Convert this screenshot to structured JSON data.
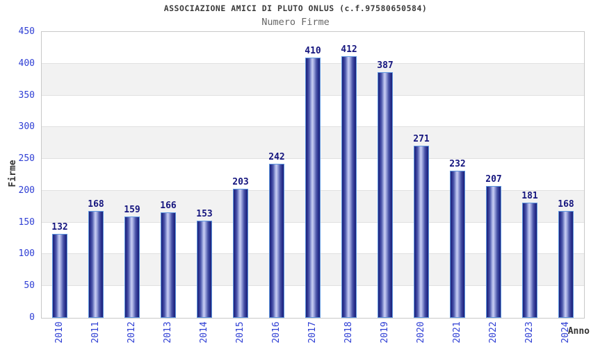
{
  "chart_data": {
    "type": "bar",
    "title": "ASSOCIAZIONE AMICI DI PLUTO ONLUS (c.f.97580650584)",
    "subtitle": "Numero Firme",
    "xlabel": "Anno",
    "ylabel": "Firme",
    "categories": [
      "2010",
      "2011",
      "2012",
      "2013",
      "2014",
      "2015",
      "2016",
      "2017",
      "2018",
      "2019",
      "2020",
      "2021",
      "2022",
      "2023",
      "2024"
    ],
    "values": [
      132,
      168,
      159,
      166,
      153,
      203,
      242,
      410,
      412,
      387,
      271,
      232,
      207,
      181,
      168
    ],
    "ylim": [
      0,
      450
    ],
    "ytick_step": 50,
    "yticks": [
      0,
      50,
      100,
      150,
      200,
      250,
      300,
      350,
      400,
      450
    ],
    "grid": true,
    "legend_position": "none",
    "style": {
      "bar_gradient_dark": "#1e2478",
      "bar_gradient_light": "#c9cef2",
      "bar_border": "#5f97e0",
      "value_label_color": "#15157e",
      "tick_label_color": "#2e3ed4",
      "band_color": "#f2f2f2",
      "gridline_color": "#e0e0e0",
      "plot_border_color": "#c8c8c8",
      "title_color": "#3a3a3a",
      "subtitle_color": "#666666",
      "axis_title_color": "#333333",
      "background": "#ffffff"
    }
  }
}
